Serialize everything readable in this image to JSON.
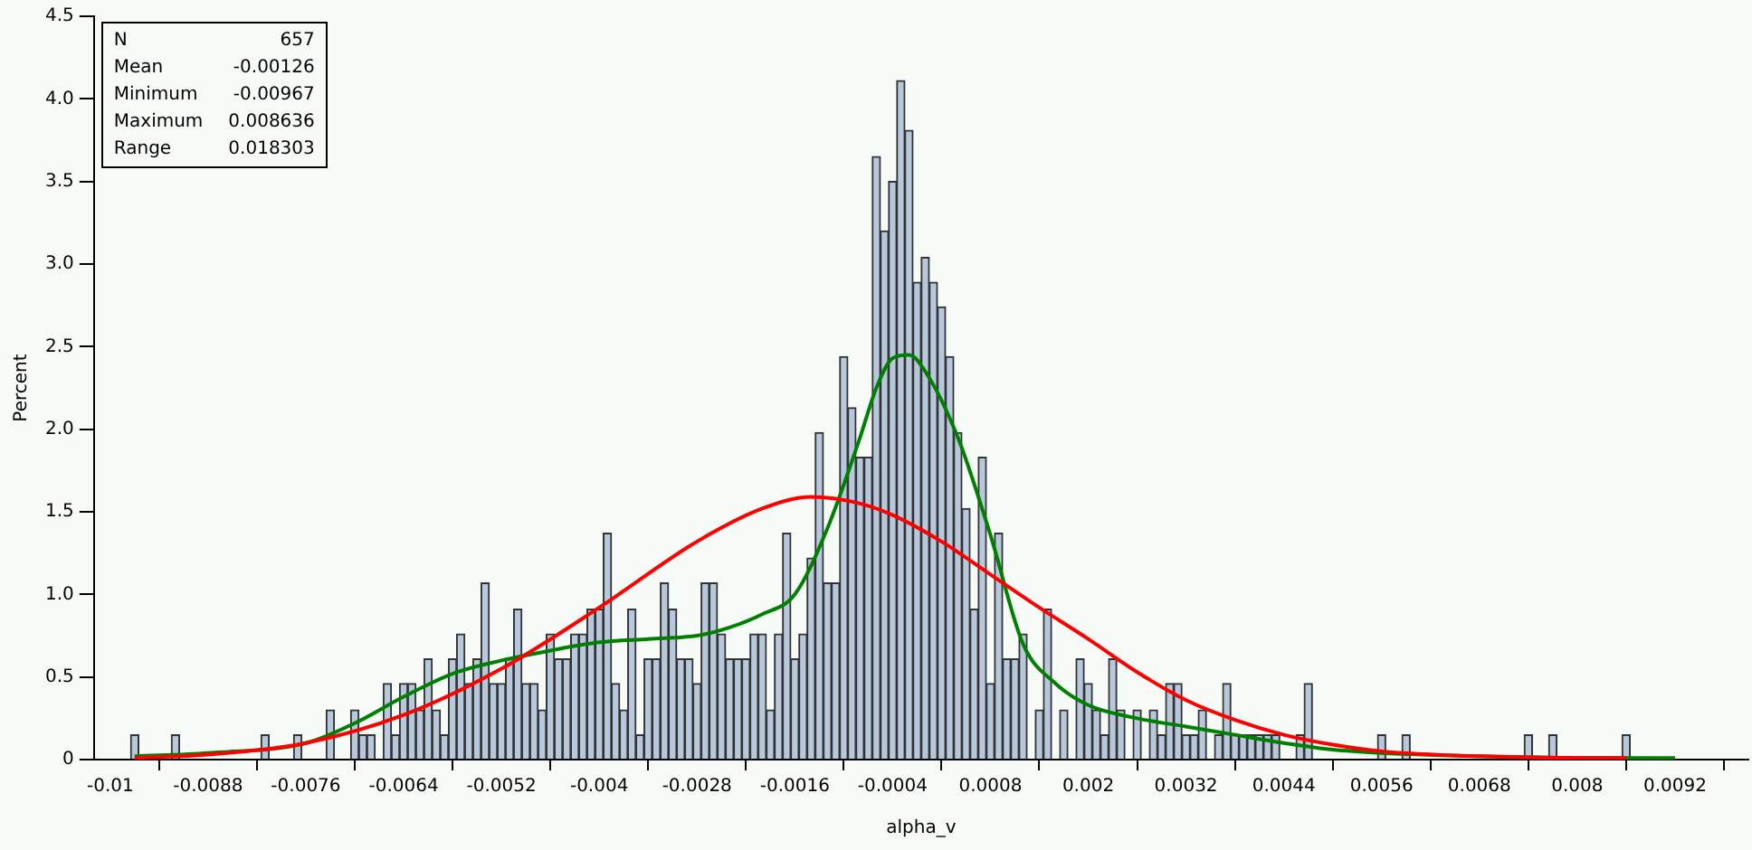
{
  "chart_data": {
    "type": "histogram",
    "xlabel": "alpha_v",
    "ylabel": "Percent",
    "color": "#b8c8dc",
    "bins": [
      -0.00975,
      -0.00965,
      -0.00955,
      -0.00945,
      -0.00935,
      -0.00925,
      -0.00915,
      -0.00905,
      -0.00895,
      -0.00885,
      -0.00875,
      -0.00865,
      -0.00855,
      -0.00845,
      -0.00835,
      -0.00825,
      -0.00815,
      -0.00805,
      -0.00795,
      -0.00785,
      -0.00775,
      -0.00765,
      -0.00755,
      -0.00745,
      -0.00735,
      -0.00725,
      -0.00715,
      -0.00705,
      -0.00695,
      -0.00685,
      -0.00675,
      -0.00665,
      -0.00655,
      -0.00645,
      -0.00635,
      -0.00625,
      -0.00615,
      -0.00605,
      -0.00595,
      -0.00585,
      -0.00575,
      -0.00565,
      -0.00555,
      -0.00545,
      -0.00535,
      -0.00525,
      -0.00515,
      -0.00505,
      -0.00495,
      -0.00485,
      -0.00475,
      -0.00465,
      -0.00455,
      -0.00445,
      -0.00435,
      -0.00425,
      -0.00415,
      -0.00405,
      -0.00395,
      -0.00385,
      -0.00375,
      -0.00365,
      -0.00355,
      -0.00345,
      -0.00335,
      -0.00325,
      -0.00315,
      -0.00305,
      -0.00295,
      -0.00285,
      -0.00275,
      -0.00265,
      -0.00255,
      -0.00245,
      -0.00235,
      -0.00225,
      -0.00215,
      -0.00205,
      -0.00195,
      -0.00185,
      -0.00175,
      -0.00165,
      -0.00155,
      -0.00145,
      -0.00135,
      -0.00125,
      -0.00115,
      -0.00105,
      -0.00095,
      -0.00085,
      -0.00075,
      -0.00065,
      -0.00055,
      -0.00045,
      -0.00035,
      -0.00025,
      -0.00015,
      -5e-05,
      5e-05,
      0.00015,
      0.00025,
      0.00035,
      0.00045,
      0.00055,
      0.00065,
      0.00075,
      0.00085,
      0.00095,
      0.00105,
      0.00115,
      0.00125,
      0.00135,
      0.00145,
      0.00155,
      0.00165,
      0.00175,
      0.00185,
      0.00195,
      0.00205,
      0.00215,
      0.00225,
      0.00235,
      0.00245,
      0.00255,
      0.00265,
      0.00275,
      0.00285,
      0.00295,
      0.00305,
      0.00315,
      0.00325,
      0.00335,
      0.00345,
      0.00355,
      0.00365,
      0.00375,
      0.00385,
      0.00395,
      0.00405,
      0.00415,
      0.00425,
      0.00435,
      0.00445,
      0.00455,
      0.00465,
      0.00475,
      0.00485,
      0.00495,
      0.00505,
      0.00515,
      0.00525,
      0.00535,
      0.00545,
      0.00555,
      0.00565,
      0.00575,
      0.00585,
      0.00595,
      0.00605,
      0.00615,
      0.00625,
      0.00635,
      0.00645,
      0.00655,
      0.00665,
      0.00675,
      0.00685,
      0.00695,
      0.00705,
      0.00715,
      0.00725,
      0.00735,
      0.00745,
      0.00755,
      0.00765,
      0.00775,
      0.00785,
      0.00795,
      0.00805,
      0.00815,
      0.00825,
      0.00835,
      0.00845,
      0.00855,
      0.00865
    ],
    "values": [
      0.15,
      0,
      0,
      0,
      0,
      0.15,
      0,
      0,
      0,
      0,
      0,
      0,
      0,
      0,
      0,
      0,
      0.15,
      0,
      0,
      0,
      0.15,
      0,
      0,
      0,
      0.3,
      0,
      0,
      0.3,
      0.15,
      0.15,
      0,
      0.46,
      0.15,
      0.46,
      0.46,
      0.3,
      0.61,
      0.3,
      0.15,
      0.61,
      0.76,
      0.46,
      0.61,
      1.07,
      0.46,
      0.46,
      0.61,
      0.91,
      0.46,
      0.46,
      0.3,
      0.76,
      0.61,
      0.61,
      0.76,
      0.76,
      0.91,
      0.91,
      1.37,
      0.46,
      0.3,
      0.91,
      0.15,
      0.61,
      0.61,
      1.07,
      0.91,
      0.61,
      0.61,
      0.46,
      1.07,
      1.07,
      0.76,
      0.61,
      0.61,
      0.61,
      0.76,
      0.76,
      0.3,
      0.76,
      1.37,
      0.61,
      0.76,
      1.22,
      1.98,
      1.07,
      1.07,
      2.44,
      2.13,
      1.83,
      1.83,
      3.65,
      3.2,
      3.5,
      4.11,
      3.81,
      2.89,
      3.04,
      2.89,
      2.74,
      2.44,
      1.98,
      1.52,
      0.91,
      1.83,
      0.46,
      1.37,
      0.61,
      0.61,
      0.76,
      0,
      0.3,
      0.91,
      0,
      0.3,
      0,
      0.61,
      0.46,
      0.3,
      0.15,
      0.61,
      0.3,
      0,
      0.3,
      0,
      0.3,
      0.15,
      0.46,
      0.46,
      0.15,
      0.15,
      0.3,
      0,
      0.15,
      0.46,
      0.15,
      0.15,
      0.15,
      0.15,
      0.15,
      0.15,
      0,
      0,
      0.15,
      0.46,
      0,
      0,
      0,
      0,
      0,
      0,
      0,
      0,
      0.15,
      0,
      0,
      0.15,
      0,
      0,
      0,
      0,
      0,
      0,
      0,
      0,
      0,
      0,
      0,
      0,
      0,
      0,
      0.15,
      0,
      0,
      0.15,
      0,
      0,
      0,
      0,
      0,
      0,
      0,
      0,
      0.15
    ],
    "series": [
      {
        "type": "line",
        "color": "#ff0000",
        "x": [
          -0.0097,
          -0.0088,
          -0.0076,
          -0.0064,
          -0.0052,
          -0.004,
          -0.0028,
          -0.002,
          -0.0014,
          -0.0008,
          -0.0004,
          0.0002,
          0.0008,
          0.0014,
          0.002,
          0.0026,
          0.0032,
          0.0038,
          0.0044,
          0.005,
          0.0056,
          0.0068,
          0.008,
          0.0086
        ],
        "values": [
          0.01,
          0.03,
          0.1,
          0.27,
          0.55,
          0.92,
          1.32,
          1.52,
          1.59,
          1.55,
          1.48,
          1.32,
          1.12,
          0.92,
          0.73,
          0.53,
          0.36,
          0.24,
          0.15,
          0.09,
          0.05,
          0.02,
          0.01,
          0.01
        ]
      },
      {
        "type": "line",
        "color": "#008000",
        "x": [
          -0.0097,
          -0.0088,
          -0.0076,
          -0.007,
          -0.0064,
          -0.0058,
          -0.0052,
          -0.0046,
          -0.004,
          -0.0034,
          -0.0028,
          -0.0024,
          -0.002,
          -0.0016,
          -0.0012,
          -0.0008,
          -0.0006,
          -0.0004,
          -0.0002,
          0,
          0.0004,
          0.0008,
          0.0012,
          0.0016,
          0.002,
          0.0026,
          0.0032,
          0.0038,
          0.0044,
          0.005,
          0.0056,
          0.0068,
          0.008,
          0.0092
        ],
        "values": [
          0.02,
          0.04,
          0.1,
          0.22,
          0.38,
          0.52,
          0.6,
          0.66,
          0.71,
          0.73,
          0.75,
          0.8,
          0.88,
          1.0,
          1.4,
          1.95,
          2.25,
          2.43,
          2.45,
          2.35,
          1.95,
          1.36,
          0.7,
          0.46,
          0.33,
          0.25,
          0.2,
          0.15,
          0.1,
          0.06,
          0.04,
          0.02,
          0.01,
          0.01
        ]
      }
    ],
    "xlim": [
      -0.0102,
      0.0101
    ],
    "ylim": [
      0,
      4.5
    ],
    "xticks": [
      -0.01,
      -0.0088,
      -0.0076,
      -0.0064,
      -0.0052,
      -0.004,
      -0.0028,
      -0.0016,
      -0.0004,
      0.0008,
      0.002,
      0.0032,
      0.0044,
      0.0056,
      0.0068,
      0.008,
      0.0092
    ],
    "yticks": [
      0,
      {
        "value": 0.5,
        "label": "0.5"
      },
      {
        "value": 1,
        "label": "1.0"
      },
      {
        "value": 1.5,
        "label": "1.5"
      },
      {
        "value": 2,
        "label": "2.0"
      },
      {
        "value": 2.5,
        "label": "2.5"
      },
      {
        "value": 3,
        "label": "3.0"
      },
      {
        "value": 3.5,
        "label": "3.5"
      },
      {
        "value": 4,
        "label": "4.0"
      },
      {
        "value": 4.5,
        "label": "4.5"
      }
    ],
    "annotations": [
      "N\t657",
      "Mean\t-0.00126",
      "Minimum\t-0.00967",
      "Maximum\t0.008636",
      "Range\t0.018303"
    ],
    "grid": false,
    "legend": false
  }
}
